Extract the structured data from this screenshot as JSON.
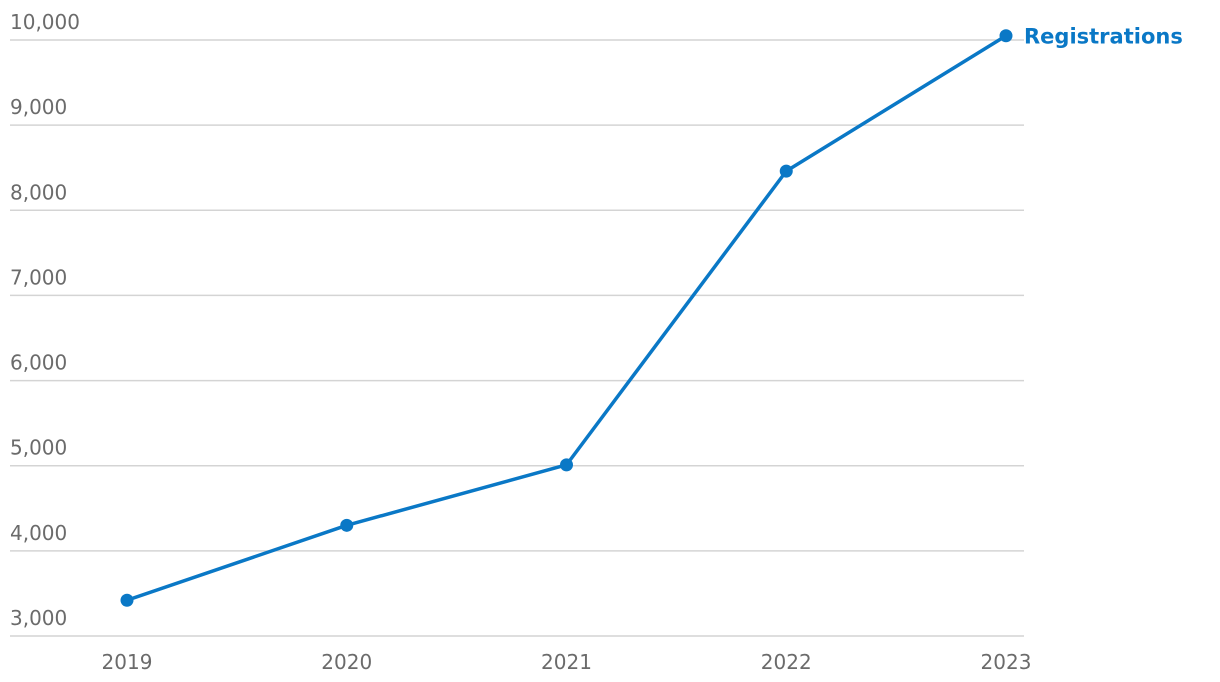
{
  "chart_data": {
    "type": "line",
    "categories": [
      "2019",
      "2020",
      "2021",
      "2022",
      "2023"
    ],
    "series": [
      {
        "name": "Registrations",
        "color": "#0a78c6",
        "values": [
          3420,
          4300,
          5010,
          8460,
          10050
        ]
      }
    ],
    "ylim": [
      3000,
      10000
    ],
    "yticks": [
      {
        "value": 3000,
        "label": "3,000"
      },
      {
        "value": 4000,
        "label": "4,000"
      },
      {
        "value": 5000,
        "label": "5,000"
      },
      {
        "value": 6000,
        "label": "6,000"
      },
      {
        "value": 7000,
        "label": "7,000"
      },
      {
        "value": 8000,
        "label": "8,000"
      },
      {
        "value": 9000,
        "label": "9,000"
      },
      {
        "value": 10000,
        "label": "10,000"
      }
    ],
    "grid": true
  }
}
